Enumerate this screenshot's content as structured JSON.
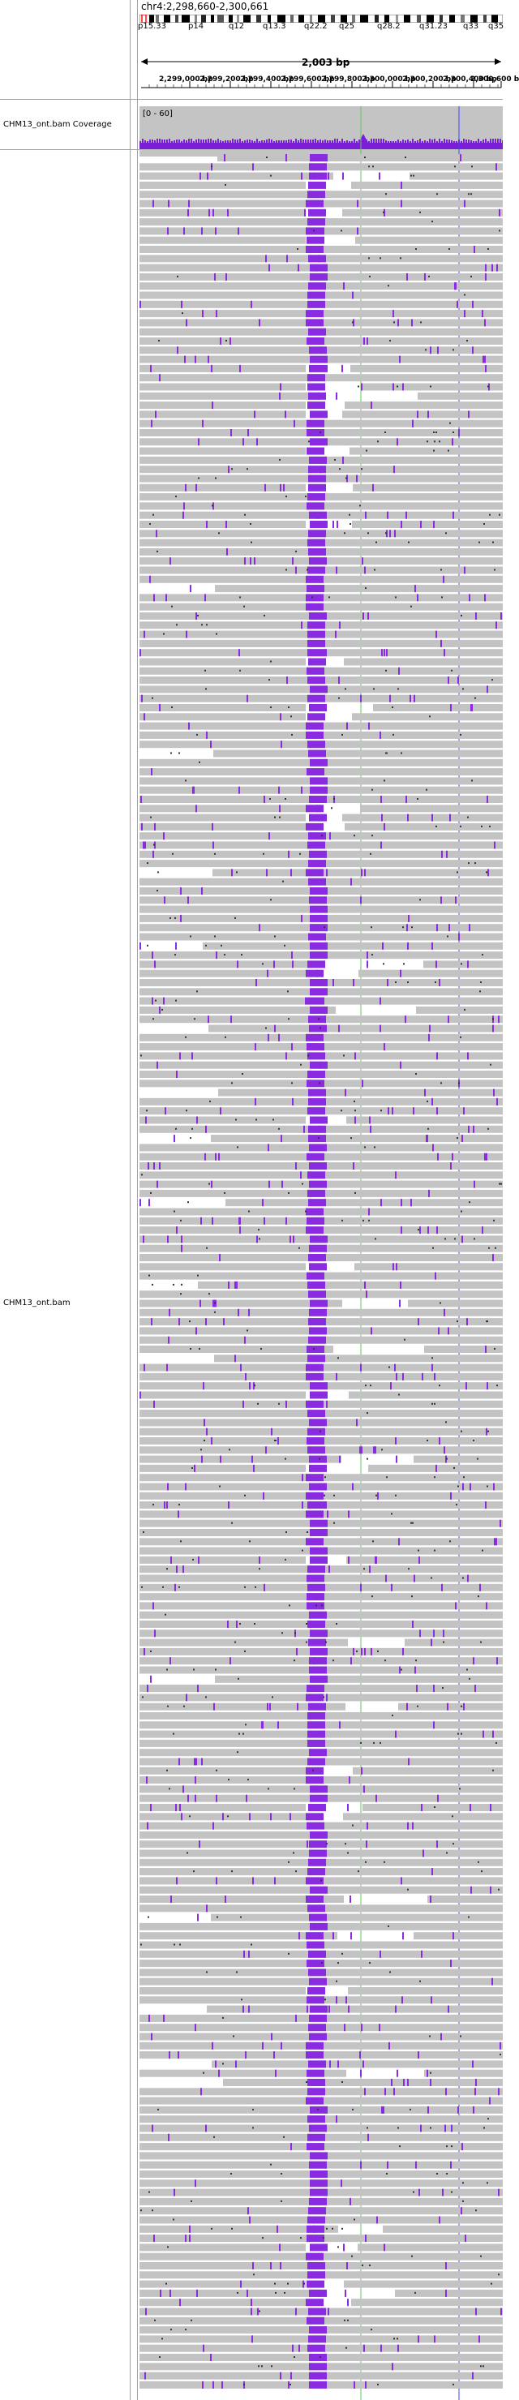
{
  "locus": "chr4:2,298,660-2,300,661",
  "ideogram": {
    "bands": [
      "p15.33",
      "p14",
      "q12",
      "q13.3",
      "q22.2",
      "q25",
      "q28.2",
      "q31.23",
      "q33",
      "q35"
    ],
    "highlight_color": "#ff0000"
  },
  "ruler": {
    "span": "2,003 bp",
    "ticks": [
      "2,299,000 bp",
      "2,299,200 bp",
      "2,299,400 bp",
      "2,299,600 bp",
      "2,299,800 bp",
      "2,300,000 bp",
      "2,300,200 bp",
      "2,300,400 bp",
      "2,300,600 bp"
    ]
  },
  "tracks": {
    "coverage": {
      "name": "CHM13_ont.bam Coverage",
      "data_range": "[0 - 60]"
    },
    "alignment": {
      "name": "CHM13_ont.bam"
    }
  },
  "colors": {
    "read": "#c3c3c3",
    "insertion": "#8a2be2",
    "coverage_bar": "#7a1fd6",
    "coverage_bg": "#c4c4c4",
    "marker_green": "#5fc45f",
    "marker_blue": "#4040ff"
  }
}
